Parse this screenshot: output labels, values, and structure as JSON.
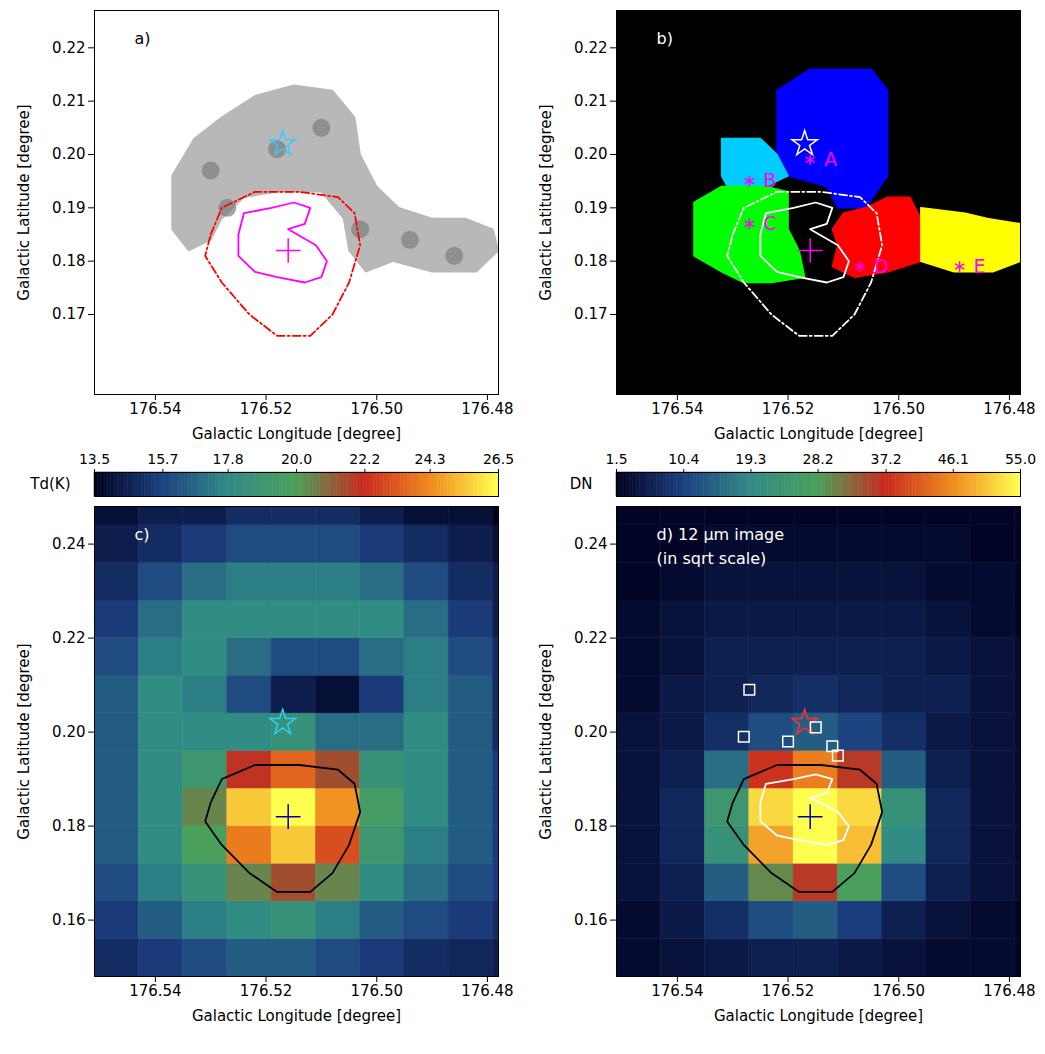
{
  "chart_data": [
    {
      "type": "contour_map",
      "title": "a)",
      "xlabel": "Galactic Longitude [degree]",
      "ylabel": "Galactic Latitude [degree]",
      "xlim": [
        176.551,
        176.478
      ],
      "ylim": [
        0.155,
        0.227
      ],
      "xticks": [
        176.54,
        176.52,
        {
          "value": 176.5,
          "label": "176.50"
        },
        176.48
      ],
      "yticks": [
        0.17,
        0.18,
        0.19,
        {
          "value": 0.2,
          "label": "0.20"
        },
        0.21,
        0.22
      ],
      "regions": [
        {
          "color": "#b8b8b8",
          "x": [
            176.537,
            176.537,
            176.533,
            176.528,
            176.522,
            176.515,
            176.508,
            176.504,
            176.503,
            176.5,
            176.496,
            176.49,
            176.484,
            176.479,
            176.478,
            176.482,
            176.49,
            176.497,
            176.502,
            176.505,
            176.506,
            176.51,
            176.518,
            176.524,
            176.528,
            176.53,
            176.534
          ],
          "y": [
            0.186,
            0.196,
            0.203,
            0.207,
            0.211,
            0.213,
            0.212,
            0.207,
            0.2,
            0.194,
            0.19,
            0.188,
            0.188,
            0.186,
            0.182,
            0.178,
            0.178,
            0.18,
            0.178,
            0.182,
            0.188,
            0.193,
            0.193,
            0.192,
            0.188,
            0.184,
            0.182
          ]
        }
      ],
      "clumps": {
        "color": "#7e7e7e",
        "x": [
          176.53,
          176.518,
          176.527,
          176.51,
          176.503,
          176.494,
          176.486
        ],
        "y": [
          0.197,
          0.201,
          0.19,
          0.205,
          0.186,
          0.184,
          0.181
        ]
      },
      "contours": [
        {
          "color": "#ff00ff",
          "line_style": "solid",
          "x": [
            176.525,
            176.524,
            176.519,
            176.515,
            176.512,
            176.513,
            176.516,
            176.511,
            176.509,
            176.51,
            176.513,
            176.518,
            176.522,
            176.525
          ],
          "y": [
            0.185,
            0.189,
            0.19,
            0.191,
            0.19,
            0.187,
            0.186,
            0.183,
            0.18,
            0.177,
            0.176,
            0.177,
            0.178,
            0.181
          ]
        },
        {
          "color": "#ff0000",
          "line_style": "dashdot",
          "x": [
            176.53,
            176.528,
            176.522,
            176.514,
            176.507,
            176.504,
            176.503,
            176.505,
            176.508,
            176.512,
            176.518,
            176.523,
            176.528,
            176.531
          ],
          "y": [
            0.185,
            0.19,
            0.193,
            0.193,
            0.192,
            0.189,
            0.183,
            0.176,
            0.17,
            0.166,
            0.166,
            0.17,
            0.176,
            0.181
          ]
        }
      ],
      "points": [
        {
          "marker": "star",
          "color": "#33ccff",
          "x": 176.517,
          "y": 0.202
        },
        {
          "marker": "plus",
          "color": "#ff00ff",
          "x": 176.516,
          "y": 0.182
        }
      ]
    },
    {
      "type": "segmentation_map",
      "title": "b)",
      "xlabel": "Galactic Longitude [degree]",
      "ylabel": "Galactic Latitude [degree]",
      "xlim": [
        176.551,
        176.478
      ],
      "ylim": [
        0.155,
        0.227
      ],
      "xticks": [
        176.54,
        176.52,
        {
          "value": 176.5,
          "label": "176.50"
        },
        176.48
      ],
      "yticks": [
        0.17,
        0.18,
        0.19,
        {
          "value": 0.2,
          "label": "0.20"
        },
        0.21,
        0.22
      ],
      "regions": [
        {
          "color": "#0000ff",
          "x": [
            176.522,
            176.522,
            176.516,
            176.505,
            176.502,
            176.502,
            176.506,
            176.511,
            176.513,
            176.52
          ],
          "y": [
            0.2,
            0.212,
            0.216,
            0.216,
            0.212,
            0.196,
            0.19,
            0.19,
            0.194,
            0.196
          ]
        },
        {
          "color": "#00ccff",
          "x": [
            176.532,
            176.532,
            176.525,
            176.522,
            176.52,
            176.524,
            176.531
          ],
          "y": [
            0.196,
            0.203,
            0.203,
            0.2,
            0.196,
            0.194,
            0.194
          ]
        },
        {
          "color": "#00ff00",
          "x": [
            176.537,
            176.537,
            176.532,
            176.524,
            176.52,
            176.52,
            176.518,
            176.517,
            176.523,
            176.528,
            176.532
          ],
          "y": [
            0.181,
            0.191,
            0.194,
            0.194,
            0.193,
            0.186,
            0.182,
            0.177,
            0.176,
            0.176,
            0.178
          ]
        },
        {
          "color": "#ff0000",
          "x": [
            176.512,
            176.51,
            176.506,
            176.502,
            176.498,
            176.496,
            176.496,
            176.502,
            176.508,
            176.512,
            176.511
          ],
          "y": [
            0.186,
            0.189,
            0.19,
            0.192,
            0.192,
            0.188,
            0.18,
            0.178,
            0.177,
            0.179,
            0.183
          ]
        },
        {
          "color": "#ffff00",
          "x": [
            176.496,
            176.488,
            176.484,
            176.478,
            176.478,
            176.483,
            176.49,
            176.496
          ],
          "y": [
            0.19,
            0.189,
            0.188,
            0.187,
            0.18,
            0.178,
            0.178,
            0.18
          ]
        }
      ],
      "contours": [
        {
          "color": "#ffffff",
          "line_style": "solid",
          "x": [
            176.525,
            176.524,
            176.519,
            176.515,
            176.512,
            176.513,
            176.516,
            176.511,
            176.509,
            176.51,
            176.513,
            176.518,
            176.522,
            176.525
          ],
          "y": [
            0.185,
            0.189,
            0.19,
            0.191,
            0.19,
            0.187,
            0.186,
            0.183,
            0.18,
            0.177,
            0.176,
            0.177,
            0.178,
            0.181
          ]
        },
        {
          "color": "#ffffff",
          "line_style": "dashdot",
          "x": [
            176.53,
            176.528,
            176.522,
            176.514,
            176.507,
            176.504,
            176.503,
            176.505,
            176.508,
            176.512,
            176.518,
            176.523,
            176.528,
            176.531
          ],
          "y": [
            0.185,
            0.19,
            0.193,
            0.193,
            0.192,
            0.189,
            0.183,
            0.176,
            0.17,
            0.166,
            0.166,
            0.17,
            0.176,
            0.181
          ]
        }
      ],
      "points": [
        {
          "marker": "star",
          "color": "#ffffff",
          "x": 176.517,
          "y": 0.202
        },
        {
          "marker": "plus",
          "color": "#ff00ff",
          "x": 176.516,
          "y": 0.182
        },
        {
          "marker": "asterisk",
          "color": "#ff00ff",
          "x": 176.516,
          "y": 0.199,
          "label": "A"
        },
        {
          "marker": "asterisk",
          "color": "#ff00ff",
          "x": 176.527,
          "y": 0.195,
          "label": "B"
        },
        {
          "marker": "asterisk",
          "color": "#ff00ff",
          "x": 176.527,
          "y": 0.187,
          "label": "C"
        },
        {
          "marker": "asterisk",
          "color": "#ff00ff",
          "x": 176.507,
          "y": 0.179,
          "label": "D"
        },
        {
          "marker": "asterisk",
          "color": "#ff00ff",
          "x": 176.489,
          "y": 0.179,
          "label": "E"
        }
      ]
    },
    {
      "type": "heatmap",
      "title": "c)",
      "xlabel": "Galactic Longitude [degree]",
      "ylabel": "Galactic Latitude [degree]",
      "xlim": [
        176.551,
        176.478
      ],
      "ylim": [
        0.148,
        0.248
      ],
      "xticks": [
        176.54,
        176.52,
        {
          "value": 176.5,
          "label": "176.50"
        },
        176.48
      ],
      "yticks": [
        0.16,
        0.18,
        {
          "value": 0.2,
          "label": "0.20"
        },
        0.22,
        0.24
      ],
      "colorbar": {
        "label": "Td(K)",
        "range": [
          13.5,
          26.5
        ],
        "ticks": [
          13.5,
          15.7,
          17.8,
          {
            "value": 20,
            "label": "20.0"
          },
          22.2,
          24.3,
          26.5
        ]
      },
      "x": [
        176.547,
        176.539,
        176.531,
        176.523,
        176.515,
        176.507,
        176.499,
        176.491,
        176.483,
        176.475
      ],
      "y": [
        0.152,
        0.16,
        0.168,
        0.176,
        0.184,
        0.192,
        0.2,
        0.208,
        0.216,
        0.224,
        0.232,
        0.24,
        0.248
      ],
      "z": [
        [
          15.0,
          15.5,
          16.0,
          16.5,
          16.5,
          16.0,
          15.5,
          15.0,
          14.8,
          14.5
        ],
        [
          15.5,
          16.5,
          17.5,
          18.0,
          18.5,
          17.5,
          16.5,
          16.0,
          15.5,
          15.0
        ],
        [
          16.0,
          17.5,
          18.5,
          20.5,
          21.5,
          20.5,
          18.0,
          17.0,
          16.0,
          15.5
        ],
        [
          16.5,
          18.0,
          20.0,
          24.0,
          25.5,
          23.0,
          19.0,
          17.5,
          16.5,
          15.5
        ],
        [
          16.5,
          18.0,
          20.5,
          25.5,
          26.5,
          24.5,
          19.5,
          18.0,
          16.5,
          15.5
        ],
        [
          16.5,
          18.0,
          19.0,
          22.0,
          23.5,
          21.5,
          18.5,
          18.0,
          16.5,
          15.5
        ],
        [
          16.5,
          18.0,
          18.0,
          18.0,
          18.5,
          17.0,
          17.0,
          18.0,
          16.5,
          15.0
        ],
        [
          16.5,
          18.0,
          17.5,
          16.0,
          14.5,
          14.0,
          15.5,
          17.5,
          16.5,
          15.0
        ],
        [
          16.0,
          17.5,
          18.0,
          17.0,
          16.0,
          16.0,
          17.0,
          17.5,
          16.0,
          15.0
        ],
        [
          15.5,
          17.0,
          18.0,
          18.0,
          18.0,
          18.0,
          18.0,
          17.0,
          15.5,
          14.5
        ],
        [
          15.0,
          16.0,
          17.0,
          17.5,
          17.5,
          17.5,
          17.0,
          16.0,
          15.0,
          14.5
        ],
        [
          14.5,
          15.0,
          15.5,
          16.0,
          16.0,
          16.0,
          15.5,
          15.0,
          14.5,
          14.0
        ],
        [
          14.0,
          14.5,
          14.5,
          15.0,
          15.0,
          15.0,
          14.5,
          14.0,
          14.0,
          13.5
        ]
      ],
      "contours": [
        {
          "color": "#000000",
          "line_style": "solid",
          "x": [
            176.53,
            176.528,
            176.522,
            176.514,
            176.507,
            176.504,
            176.503,
            176.505,
            176.508,
            176.512,
            176.518,
            176.523,
            176.528,
            176.531
          ],
          "y": [
            0.185,
            0.19,
            0.193,
            0.193,
            0.192,
            0.189,
            0.183,
            0.176,
            0.17,
            0.166,
            0.166,
            0.17,
            0.176,
            0.181
          ]
        }
      ],
      "points": [
        {
          "marker": "star",
          "color": "#33ccff",
          "x": 176.517,
          "y": 0.202
        },
        {
          "marker": "plus",
          "color": "#0000aa",
          "x": 176.516,
          "y": 0.182
        }
      ]
    },
    {
      "type": "heatmap",
      "title": "d) 12 μm image",
      "subtitle": "(in sqrt scale)",
      "xlabel": "Galactic Longitude [degree]",
      "ylabel": "Galactic Latitude [degree]",
      "xlim": [
        176.551,
        176.478
      ],
      "ylim": [
        0.148,
        0.248
      ],
      "xticks": [
        176.54,
        176.52,
        {
          "value": 176.5,
          "label": "176.50"
        },
        176.48
      ],
      "yticks": [
        0.16,
        0.18,
        {
          "value": 0.2,
          "label": "0.20"
        },
        0.22,
        0.24
      ],
      "colorbar": {
        "label": "DN",
        "range": [
          1.5,
          55
        ],
        "ticks": [
          1.5,
          10.4,
          19.3,
          28.2,
          37.2,
          46.1,
          {
            "value": 55,
            "label": "55.0"
          }
        ]
      },
      "x": [
        176.547,
        176.539,
        176.531,
        176.523,
        176.515,
        176.507,
        176.499,
        176.491,
        176.483,
        176.475
      ],
      "y": [
        0.152,
        0.16,
        0.168,
        0.176,
        0.184,
        0.192,
        0.2,
        0.208,
        0.216,
        0.224,
        0.232,
        0.24,
        0.248
      ],
      "z": [
        [
          3,
          4,
          5,
          6,
          6,
          5,
          4,
          3,
          3,
          2
        ],
        [
          3,
          5,
          8,
          12,
          14,
          10,
          6,
          4,
          3,
          2
        ],
        [
          4,
          6,
          14,
          30,
          36,
          28,
          12,
          6,
          4,
          3
        ],
        [
          4,
          7,
          22,
          48,
          55,
          50,
          20,
          7,
          4,
          3
        ],
        [
          4,
          7,
          24,
          52,
          55,
          52,
          22,
          7,
          4,
          3
        ],
        [
          4,
          6,
          16,
          38,
          45,
          36,
          14,
          6,
          4,
          3
        ],
        [
          4,
          5,
          8,
          12,
          14,
          11,
          8,
          5,
          4,
          3
        ],
        [
          3,
          5,
          6,
          7,
          8,
          7,
          6,
          6,
          4,
          3
        ],
        [
          3,
          4,
          6,
          6,
          6,
          6,
          6,
          5,
          4,
          3
        ],
        [
          3,
          4,
          5,
          5,
          5,
          5,
          5,
          4,
          3,
          2
        ],
        [
          2,
          3,
          4,
          4,
          4,
          4,
          4,
          3,
          3,
          2
        ],
        [
          2,
          2,
          3,
          3,
          3,
          3,
          3,
          3,
          2,
          2
        ],
        [
          2,
          2,
          2,
          2,
          2,
          2,
          2,
          2,
          2,
          2
        ]
      ],
      "contours": [
        {
          "color": "#000000",
          "line_style": "solid",
          "x": [
            176.53,
            176.528,
            176.522,
            176.514,
            176.507,
            176.504,
            176.503,
            176.505,
            176.508,
            176.512,
            176.518,
            176.523,
            176.528,
            176.531
          ],
          "y": [
            0.185,
            0.19,
            0.193,
            0.193,
            0.192,
            0.189,
            0.183,
            0.176,
            0.17,
            0.166,
            0.166,
            0.17,
            0.176,
            0.181
          ]
        },
        {
          "color": "#ffffff",
          "line_style": "solid",
          "x": [
            176.525,
            176.524,
            176.519,
            176.515,
            176.512,
            176.513,
            176.516,
            176.511,
            176.509,
            176.51,
            176.513,
            176.518,
            176.522,
            176.525
          ],
          "y": [
            0.185,
            0.189,
            0.19,
            0.191,
            0.19,
            0.187,
            0.186,
            0.183,
            0.18,
            0.177,
            0.176,
            0.177,
            0.178,
            0.181
          ]
        }
      ],
      "points": [
        {
          "marker": "star",
          "color": "#ff3030",
          "x": 176.517,
          "y": 0.202
        },
        {
          "marker": "plus",
          "color": "#0000aa",
          "x": 176.516,
          "y": 0.182
        },
        {
          "marker": "square",
          "color": "#ffffff",
          "x": 176.527,
          "y": 0.209
        },
        {
          "marker": "square",
          "color": "#ffffff",
          "x": 176.528,
          "y": 0.199
        },
        {
          "marker": "square",
          "color": "#ffffff",
          "x": 176.52,
          "y": 0.198
        },
        {
          "marker": "square",
          "color": "#ffffff",
          "x": 176.515,
          "y": 0.201
        },
        {
          "marker": "square",
          "color": "#ffffff",
          "x": 176.512,
          "y": 0.197
        },
        {
          "marker": "square",
          "color": "#ffffff",
          "x": 176.511,
          "y": 0.195
        }
      ]
    }
  ]
}
